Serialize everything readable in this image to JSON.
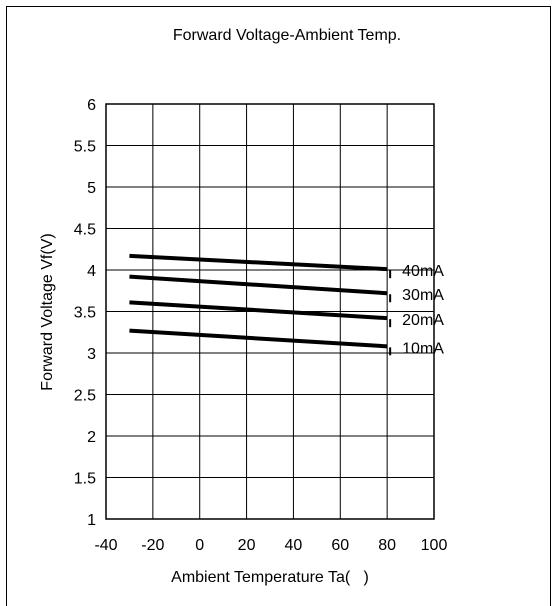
{
  "chart_data": {
    "type": "line",
    "title": "Forward Voltage-Ambient Temp.",
    "xlabel": "Ambient Temperature Ta(   )",
    "ylabel": "Forward Voltage Vf(V)",
    "xlim": [
      -40,
      100
    ],
    "ylim": [
      1,
      6
    ],
    "xticks": [
      -40,
      -20,
      0,
      20,
      40,
      60,
      80,
      100
    ],
    "yticks": [
      1,
      1.5,
      2,
      2.5,
      3,
      3.5,
      4,
      4.5,
      5,
      5.5,
      6
    ],
    "x_tick_labels": [
      "-40",
      "-20",
      "0",
      "20",
      "40",
      "60",
      "80",
      "100"
    ],
    "y_tick_labels": [
      "1",
      "1.5",
      "2",
      "2.5",
      "3",
      "3.5",
      "4",
      "4.5",
      "5",
      "5.5",
      "6"
    ],
    "grid": true,
    "series": [
      {
        "name": "40mA",
        "x": [
          -30,
          80
        ],
        "y": [
          4.17,
          4.01
        ]
      },
      {
        "name": "30mA",
        "x": [
          -30,
          80
        ],
        "y": [
          3.92,
          3.72
        ]
      },
      {
        "name": "20mA",
        "x": [
          -30,
          80
        ],
        "y": [
          3.61,
          3.42
        ]
      },
      {
        "name": "10mA",
        "x": [
          -30,
          80
        ],
        "y": [
          3.27,
          3.08
        ]
      }
    ]
  }
}
